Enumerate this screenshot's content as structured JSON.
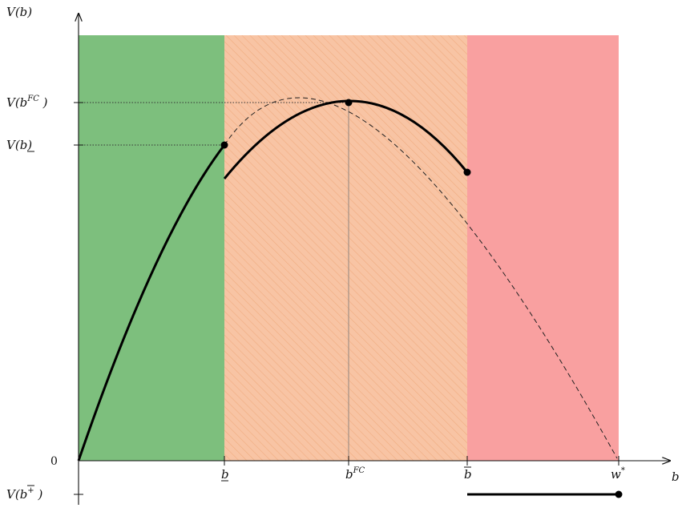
{
  "diagram": {
    "y_axis_label": "V(b)",
    "x_axis_label": "b",
    "y_ticks": [
      {
        "base": "V(b",
        "sup": "FC",
        "tail": " )"
      },
      {
        "base": "V(",
        "underbar": "b",
        "tail": ")"
      },
      {
        "base": "0"
      },
      {
        "base": "V(",
        "overbar": "b",
        "sup": "+",
        "tail": " )"
      }
    ],
    "x_ticks": [
      {
        "underbar": "b"
      },
      {
        "base": "b",
        "sup": "FC"
      },
      {
        "overbar": "b"
      },
      {
        "base": "w",
        "sup": "*"
      }
    ],
    "regions": [
      {
        "name": "green-region",
        "color": "#7dbf7d"
      },
      {
        "name": "orange-hatched-region",
        "color": "#f8c4a4"
      },
      {
        "name": "red-region",
        "color": "#f9a0a0"
      }
    ]
  }
}
